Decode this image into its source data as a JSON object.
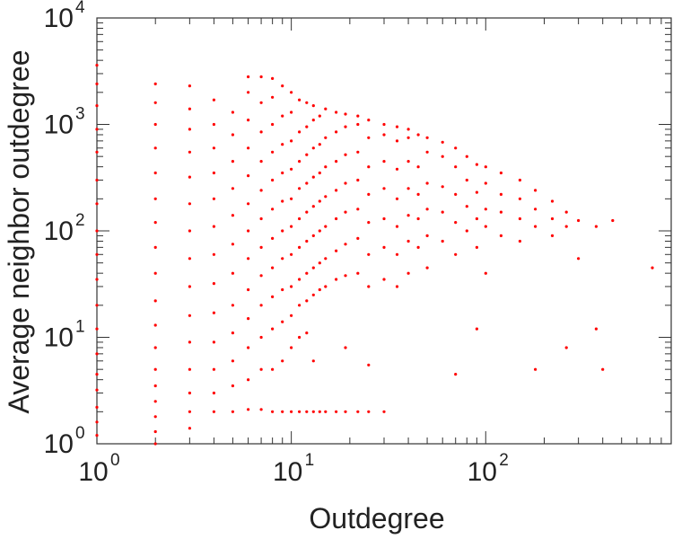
{
  "chart_data": {
    "type": "scatter",
    "title": "",
    "xlabel": "Outdegree",
    "ylabel": "Average neighbor outdegree",
    "x_scale": "log",
    "y_scale": "log",
    "xlim": [
      1,
      900
    ],
    "ylim": [
      1,
      10000
    ],
    "grid": false,
    "legend": "none",
    "marker_color": "#ff0000",
    "x_ticks": [
      {
        "base": "10",
        "exp": "0",
        "value": 1
      },
      {
        "base": "10",
        "exp": "1",
        "value": 10
      },
      {
        "base": "10",
        "exp": "2",
        "value": 100
      }
    ],
    "y_ticks": [
      {
        "base": "10",
        "exp": "0",
        "value": 1
      },
      {
        "base": "10",
        "exp": "1",
        "value": 10
      },
      {
        "base": "10",
        "exp": "2",
        "value": 100
      },
      {
        "base": "10",
        "exp": "3",
        "value": 1000
      },
      {
        "base": "10",
        "exp": "4",
        "value": 10000
      }
    ],
    "series": [
      {
        "points": [
          [
            1,
            1.2
          ],
          [
            1,
            1.6
          ],
          [
            1,
            2.2
          ],
          [
            1,
            3.2
          ],
          [
            1,
            4.5
          ],
          [
            1,
            7
          ],
          [
            1,
            12
          ],
          [
            1,
            20
          ],
          [
            1,
            35
          ],
          [
            1,
            60
          ],
          [
            1,
            100
          ],
          [
            1,
            180
          ],
          [
            1,
            300
          ],
          [
            1,
            550
          ],
          [
            1,
            900
          ],
          [
            1,
            1500
          ],
          [
            1,
            2400
          ],
          [
            1,
            3600
          ],
          [
            2,
            1.0
          ],
          [
            2,
            1.3
          ],
          [
            2,
            1.8
          ],
          [
            2,
            2.5
          ],
          [
            2,
            3.5
          ],
          [
            2,
            5
          ],
          [
            2,
            8
          ],
          [
            2,
            13
          ],
          [
            2,
            22
          ],
          [
            2,
            40
          ],
          [
            2,
            70
          ],
          [
            2,
            120
          ],
          [
            2,
            200
          ],
          [
            2,
            350
          ],
          [
            2,
            600
          ],
          [
            2,
            1000
          ],
          [
            2,
            1600
          ],
          [
            2,
            2400
          ],
          [
            3,
            1.4
          ],
          [
            3,
            2
          ],
          [
            3,
            3
          ],
          [
            3,
            5
          ],
          [
            3,
            9
          ],
          [
            3,
            16
          ],
          [
            3,
            30
          ],
          [
            3,
            55
          ],
          [
            3,
            100
          ],
          [
            3,
            180
          ],
          [
            3,
            320
          ],
          [
            3,
            550
          ],
          [
            3,
            900
          ],
          [
            3,
            1400
          ],
          [
            3,
            2300
          ],
          [
            4,
            2
          ],
          [
            4,
            3
          ],
          [
            4,
            5
          ],
          [
            4,
            9
          ],
          [
            4,
            17
          ],
          [
            4,
            32
          ],
          [
            4,
            60
          ],
          [
            4,
            110
          ],
          [
            4,
            200
          ],
          [
            4,
            350
          ],
          [
            4,
            600
          ],
          [
            4,
            1000
          ],
          [
            4,
            1700
          ],
          [
            5,
            2
          ],
          [
            5,
            3.5
          ],
          [
            5,
            6
          ],
          [
            5,
            11
          ],
          [
            5,
            20
          ],
          [
            5,
            40
          ],
          [
            5,
            75
          ],
          [
            5,
            140
          ],
          [
            5,
            250
          ],
          [
            5,
            450
          ],
          [
            5,
            800
          ],
          [
            5,
            1300
          ],
          [
            6,
            2.1
          ],
          [
            6,
            4
          ],
          [
            6,
            8
          ],
          [
            6,
            15
          ],
          [
            6,
            28
          ],
          [
            6,
            55
          ],
          [
            6,
            100
          ],
          [
            6,
            180
          ],
          [
            6,
            330
          ],
          [
            6,
            600
          ],
          [
            6,
            1100
          ],
          [
            6,
            2000
          ],
          [
            6,
            2800
          ],
          [
            7,
            2.1
          ],
          [
            7,
            5
          ],
          [
            7,
            10
          ],
          [
            7,
            20
          ],
          [
            7,
            38
          ],
          [
            7,
            70
          ],
          [
            7,
            130
          ],
          [
            7,
            240
          ],
          [
            7,
            450
          ],
          [
            7,
            850
          ],
          [
            7,
            1600
          ],
          [
            7,
            2800
          ],
          [
            8,
            2.0
          ],
          [
            8,
            5
          ],
          [
            8,
            12
          ],
          [
            8,
            24
          ],
          [
            8,
            45
          ],
          [
            8,
            85
          ],
          [
            8,
            160
          ],
          [
            8,
            300
          ],
          [
            8,
            550
          ],
          [
            8,
            1000
          ],
          [
            8,
            1800
          ],
          [
            8,
            2700
          ],
          [
            9,
            2.0
          ],
          [
            9,
            6
          ],
          [
            9,
            14
          ],
          [
            9,
            28
          ],
          [
            9,
            55
          ],
          [
            9,
            100
          ],
          [
            9,
            190
          ],
          [
            9,
            350
          ],
          [
            9,
            650
          ],
          [
            9,
            1200
          ],
          [
            9,
            2300
          ],
          [
            10,
            2.0
          ],
          [
            10,
            8
          ],
          [
            10,
            16
          ],
          [
            10,
            30
          ],
          [
            10,
            60
          ],
          [
            10,
            110
          ],
          [
            10,
            200
          ],
          [
            10,
            380
          ],
          [
            10,
            700
          ],
          [
            10,
            1300
          ],
          [
            10,
            2000
          ],
          [
            11,
            2.0
          ],
          [
            11,
            10
          ],
          [
            11,
            20
          ],
          [
            11,
            35
          ],
          [
            11,
            70
          ],
          [
            11,
            130
          ],
          [
            11,
            250
          ],
          [
            11,
            450
          ],
          [
            11,
            850
          ],
          [
            11,
            1700
          ],
          [
            12,
            2.0
          ],
          [
            12,
            11
          ],
          [
            12,
            22
          ],
          [
            12,
            40
          ],
          [
            12,
            80
          ],
          [
            12,
            150
          ],
          [
            12,
            280
          ],
          [
            12,
            520
          ],
          [
            12,
            950
          ],
          [
            12,
            1600
          ],
          [
            13,
            2.0
          ],
          [
            13,
            6
          ],
          [
            13,
            25
          ],
          [
            13,
            45
          ],
          [
            13,
            90
          ],
          [
            13,
            170
          ],
          [
            13,
            320
          ],
          [
            13,
            600
          ],
          [
            13,
            1100
          ],
          [
            13,
            1500
          ],
          [
            14,
            2.0
          ],
          [
            14,
            28
          ],
          [
            14,
            50
          ],
          [
            14,
            100
          ],
          [
            14,
            190
          ],
          [
            14,
            350
          ],
          [
            14,
            650
          ],
          [
            14,
            1200
          ],
          [
            15,
            2.0
          ],
          [
            15,
            30
          ],
          [
            15,
            55
          ],
          [
            15,
            110
          ],
          [
            15,
            210
          ],
          [
            15,
            400
          ],
          [
            15,
            750
          ],
          [
            15,
            1400
          ],
          [
            17,
            2.0
          ],
          [
            17,
            35
          ],
          [
            17,
            65
          ],
          [
            17,
            130
          ],
          [
            17,
            240
          ],
          [
            17,
            450
          ],
          [
            17,
            850
          ],
          [
            17,
            1300
          ],
          [
            19,
            2.0
          ],
          [
            19,
            8
          ],
          [
            19,
            38
          ],
          [
            19,
            75
          ],
          [
            19,
            150
          ],
          [
            19,
            280
          ],
          [
            19,
            520
          ],
          [
            19,
            950
          ],
          [
            19,
            1250
          ],
          [
            22,
            2.0
          ],
          [
            22,
            40
          ],
          [
            22,
            85
          ],
          [
            22,
            160
          ],
          [
            22,
            300
          ],
          [
            22,
            550
          ],
          [
            22,
            1000
          ],
          [
            22,
            1200
          ],
          [
            25,
            2.0
          ],
          [
            25,
            5.5
          ],
          [
            25,
            30
          ],
          [
            25,
            60
          ],
          [
            25,
            120
          ],
          [
            25,
            220
          ],
          [
            25,
            400
          ],
          [
            25,
            750
          ],
          [
            25,
            1100
          ],
          [
            30,
            2.0
          ],
          [
            30,
            35
          ],
          [
            30,
            70
          ],
          [
            30,
            130
          ],
          [
            30,
            250
          ],
          [
            30,
            450
          ],
          [
            30,
            800
          ],
          [
            30,
            1000
          ],
          [
            35,
            30
          ],
          [
            35,
            60
          ],
          [
            35,
            110
          ],
          [
            35,
            200
          ],
          [
            35,
            380
          ],
          [
            35,
            700
          ],
          [
            35,
            950
          ],
          [
            40,
            40
          ],
          [
            40,
            80
          ],
          [
            40,
            140
          ],
          [
            40,
            250
          ],
          [
            40,
            450
          ],
          [
            40,
            750
          ],
          [
            40,
            900
          ],
          [
            45,
            70
          ],
          [
            45,
            130
          ],
          [
            45,
            220
          ],
          [
            45,
            400
          ],
          [
            45,
            800
          ],
          [
            50,
            45
          ],
          [
            50,
            90
          ],
          [
            50,
            160
          ],
          [
            50,
            280
          ],
          [
            50,
            550
          ],
          [
            50,
            750
          ],
          [
            60,
            80
          ],
          [
            60,
            150
          ],
          [
            60,
            260
          ],
          [
            60,
            500
          ],
          [
            60,
            680
          ],
          [
            70,
            4.5
          ],
          [
            70,
            60
          ],
          [
            70,
            120
          ],
          [
            70,
            220
          ],
          [
            70,
            400
          ],
          [
            70,
            600
          ],
          [
            80,
            100
          ],
          [
            80,
            170
          ],
          [
            80,
            300
          ],
          [
            80,
            500
          ],
          [
            90,
            12
          ],
          [
            90,
            70
          ],
          [
            90,
            130
          ],
          [
            90,
            230
          ],
          [
            90,
            420
          ],
          [
            100,
            40
          ],
          [
            100,
            110
          ],
          [
            100,
            160
          ],
          [
            100,
            280
          ],
          [
            100,
            400
          ],
          [
            120,
            90
          ],
          [
            120,
            150
          ],
          [
            120,
            220
          ],
          [
            120,
            350
          ],
          [
            150,
            80
          ],
          [
            150,
            130
          ],
          [
            150,
            200
          ],
          [
            150,
            300
          ],
          [
            180,
            5
          ],
          [
            180,
            110
          ],
          [
            180,
            160
          ],
          [
            180,
            240
          ],
          [
            220,
            90
          ],
          [
            220,
            130
          ],
          [
            220,
            190
          ],
          [
            260,
            8
          ],
          [
            260,
            110
          ],
          [
            260,
            150
          ],
          [
            300,
            55
          ],
          [
            300,
            125
          ],
          [
            370,
            110
          ],
          [
            370,
            12
          ],
          [
            400,
            5
          ],
          [
            450,
            125
          ],
          [
            720,
            45
          ]
        ]
      }
    ]
  }
}
